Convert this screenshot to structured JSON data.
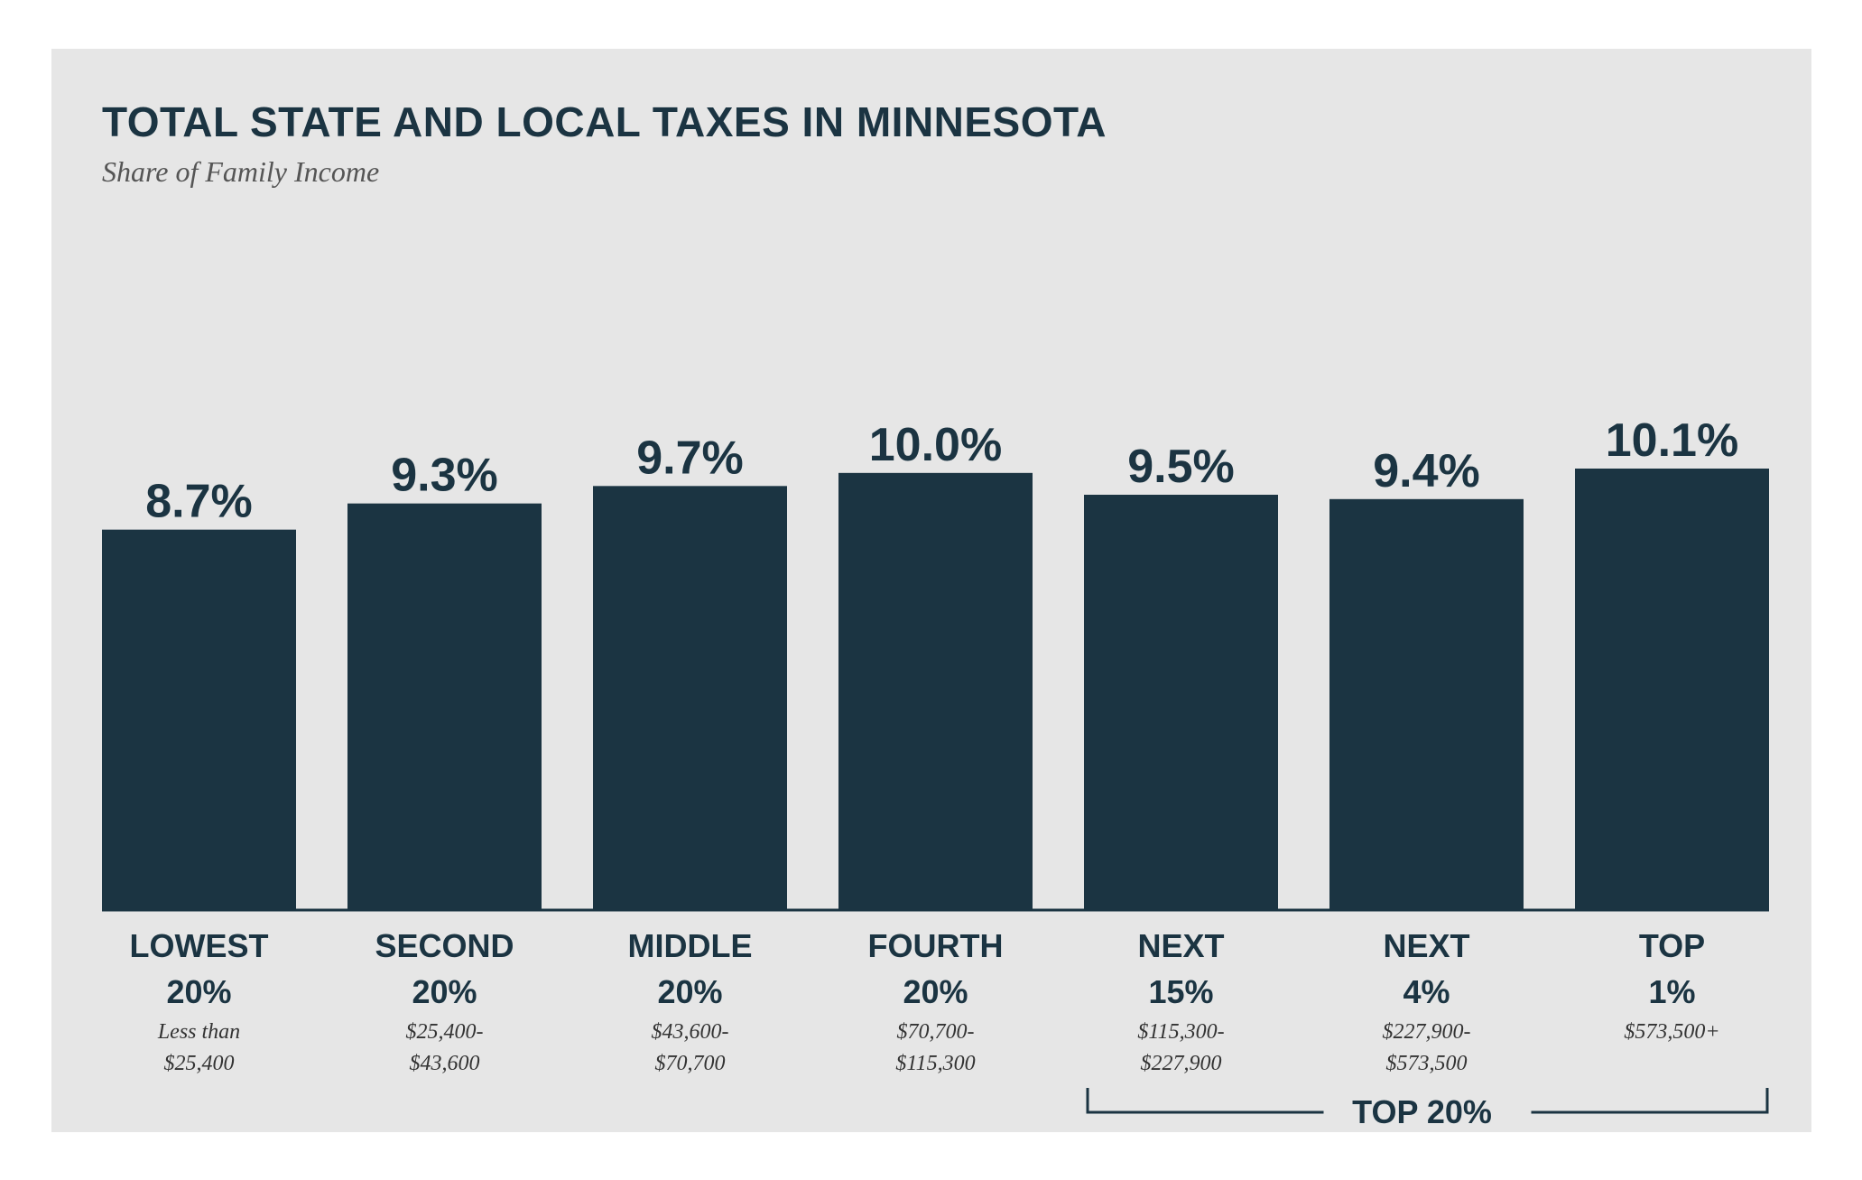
{
  "chart_data": {
    "type": "bar",
    "title": "TOTAL STATE AND LOCAL TAXES IN MINNESOTA",
    "subtitle": "Share of Family Income",
    "value_labels": [
      "8.7%",
      "9.3%",
      "9.7%",
      "10.0%",
      "9.5%",
      "9.4%",
      "10.1%"
    ],
    "values": [
      8.7,
      9.3,
      9.7,
      10.0,
      9.5,
      9.4,
      10.1
    ],
    "categories": [
      {
        "line1": "LOWEST",
        "line2": "20%",
        "range1": "Less than",
        "range2": "$25,400"
      },
      {
        "line1": "SECOND",
        "line2": "20%",
        "range1": "$25,400-",
        "range2": "$43,600"
      },
      {
        "line1": "MIDDLE",
        "line2": "20%",
        "range1": "$43,600-",
        "range2": "$70,700"
      },
      {
        "line1": "FOURTH",
        "line2": "20%",
        "range1": "$70,700-",
        "range2": "$115,300"
      },
      {
        "line1": "NEXT",
        "line2": "15%",
        "range1": "$115,300-",
        "range2": "$227,900"
      },
      {
        "line1": "NEXT",
        "line2": "4%",
        "range1": "$227,900-",
        "range2": "$573,500"
      },
      {
        "line1": "TOP",
        "line2": "1%",
        "range1": "$573,500+",
        "range2": ""
      }
    ],
    "group_bracket": {
      "label": "TOP 20%",
      "from_index": 4,
      "to_index": 6
    },
    "ylim": [
      0,
      10.1
    ],
    "grid": false,
    "legend": "none",
    "bar_color": "#1b3442",
    "background_color": "#e6e6e6"
  }
}
